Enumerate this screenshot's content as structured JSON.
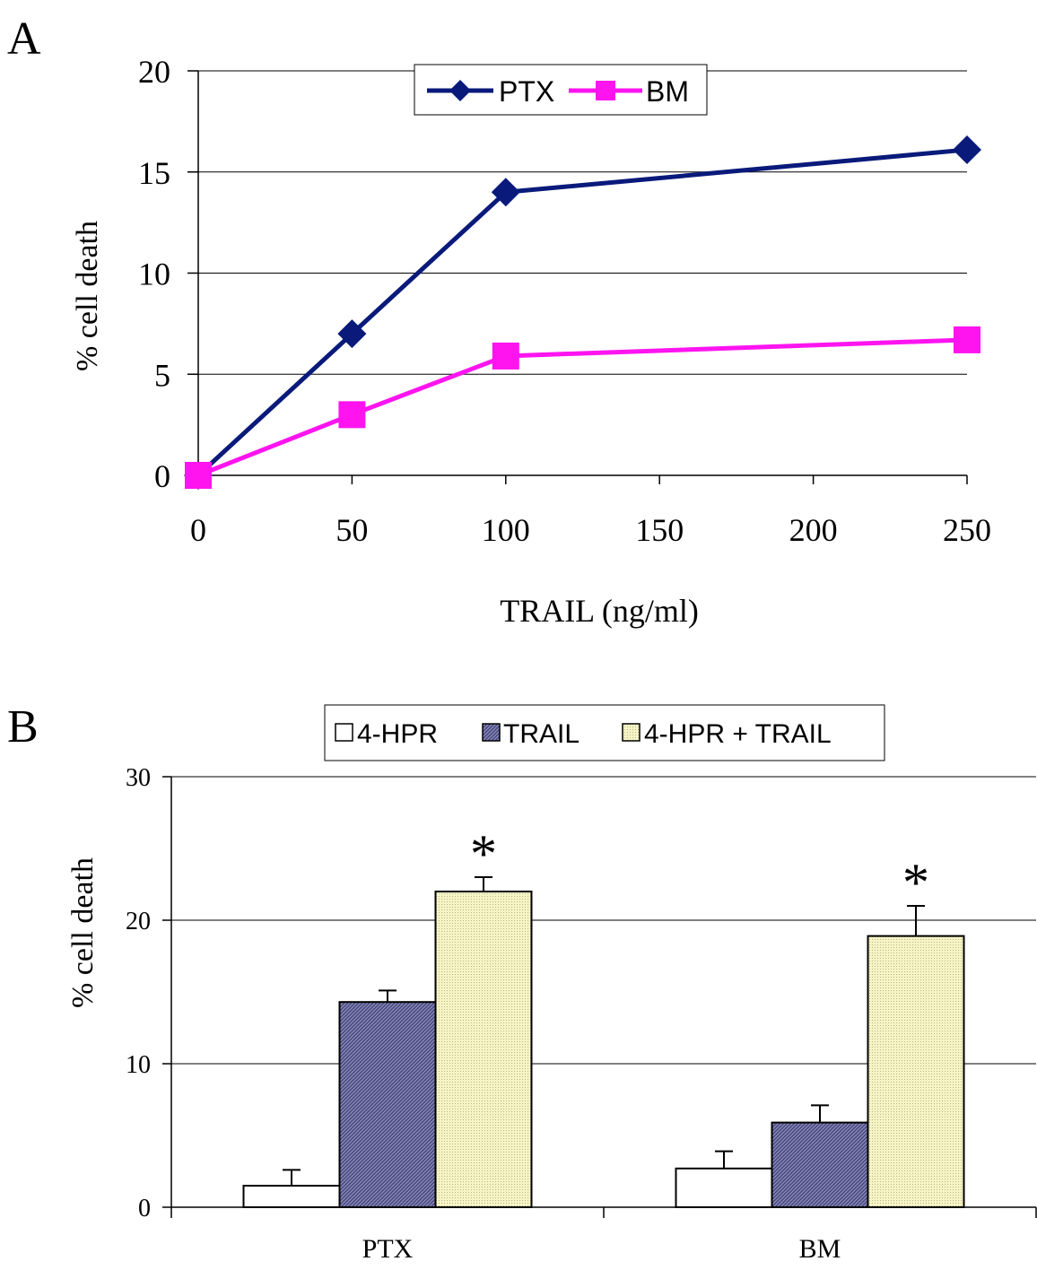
{
  "colors": {
    "ptx_line": "#0a1a7a",
    "bm_line": "#ff14f0",
    "bar_4hpr": "#ffffff",
    "bar_trail": "#4a4a80",
    "bar_combo": "#f4f2bc",
    "grid": "#000000"
  },
  "chart_data": [
    {
      "panel_label": "A",
      "type": "line",
      "xlabel": "TRAIL (ng/ml)",
      "ylabel": "% cell death",
      "x_ticks": [
        0,
        50,
        100,
        150,
        200,
        250
      ],
      "y_ticks": [
        0,
        5,
        10,
        15,
        20
      ],
      "xlim": [
        0,
        250
      ],
      "ylim": [
        0,
        20
      ],
      "grid": "horizontal",
      "legend_position": "top-center",
      "series": [
        {
          "name": "PTX",
          "marker": "diamond",
          "x": [
            0,
            50,
            100,
            250
          ],
          "y": [
            0,
            7,
            14,
            16.1
          ]
        },
        {
          "name": "BM",
          "marker": "square",
          "x": [
            0,
            50,
            100,
            250
          ],
          "y": [
            0,
            3,
            5.9,
            6.7
          ]
        }
      ]
    },
    {
      "panel_label": "B",
      "type": "bar",
      "ylabel": "% cell death",
      "categories": [
        "PTX",
        "BM"
      ],
      "y_ticks": [
        0,
        10,
        20,
        30
      ],
      "ylim": [
        0,
        30
      ],
      "grid": "horizontal",
      "legend_position": "top-center",
      "series": [
        {
          "name": "4-HPR",
          "values": [
            1.5,
            2.7
          ],
          "errors": [
            1.1,
            1.2
          ]
        },
        {
          "name": "TRAIL",
          "values": [
            14.3,
            5.9
          ],
          "errors": [
            0.8,
            1.2
          ]
        },
        {
          "name": "4-HPR + TRAIL",
          "values": [
            22.0,
            18.9
          ],
          "errors": [
            1.0,
            2.1
          ]
        }
      ],
      "annotations": [
        {
          "text": "*",
          "category": "PTX",
          "series": "4-HPR + TRAIL"
        },
        {
          "text": "*",
          "category": "BM",
          "series": "4-HPR + TRAIL"
        }
      ]
    }
  ]
}
